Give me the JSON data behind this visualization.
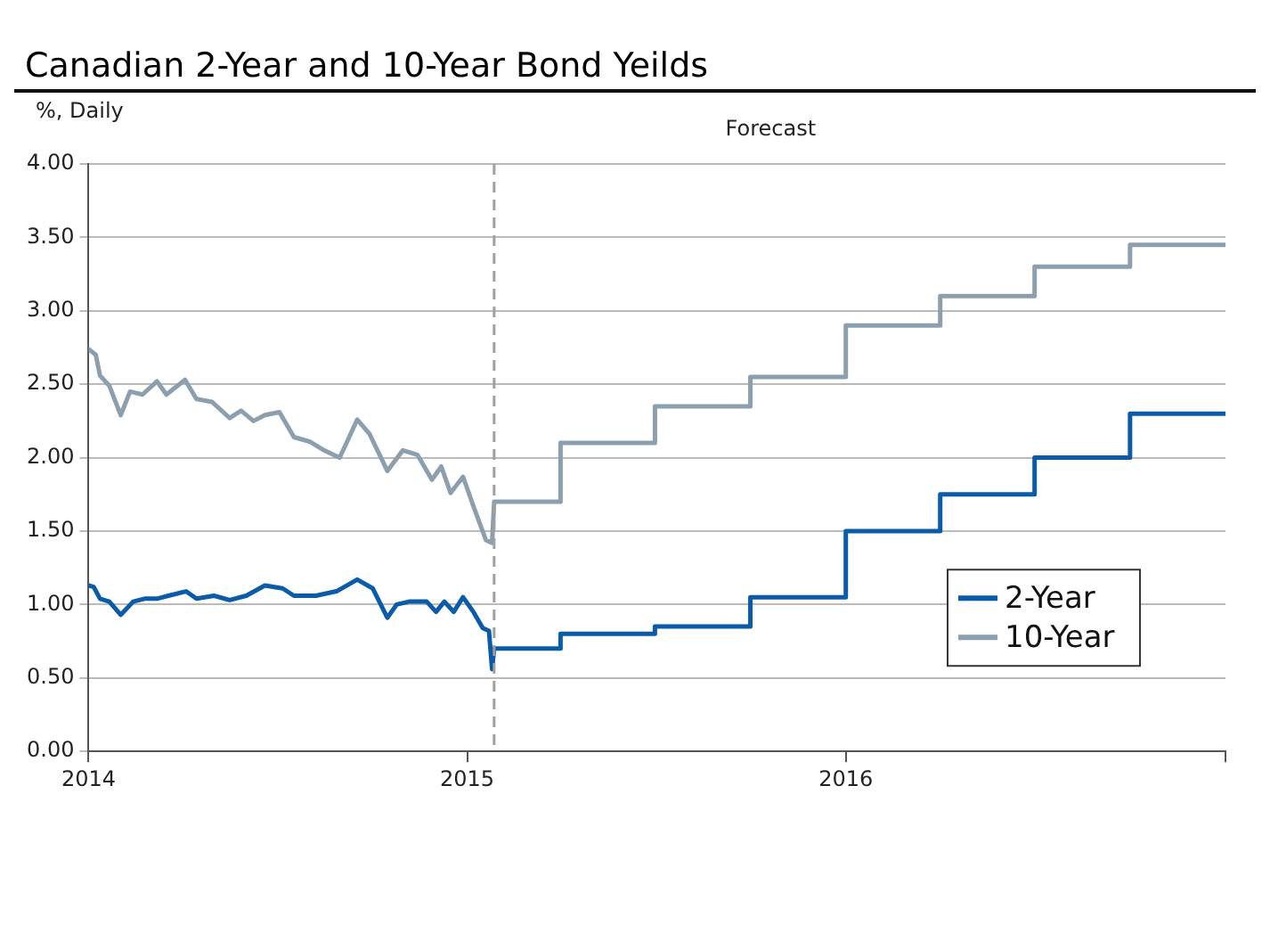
{
  "chart_data": {
    "type": "line",
    "title": "Canadian 2-Year and 10-Year Bond Yeilds",
    "ylabel": "%, Daily",
    "annotations": [
      "Forecast"
    ],
    "xlim": [
      "2014-01-01",
      "2017-01-01"
    ],
    "xticks": [
      "2014",
      "2015",
      "2016",
      {
        "value": "2017",
        "label": null
      }
    ],
    "ylim": [
      0,
      4
    ],
    "yticks": [
      {
        "value": 0,
        "label": "0.00"
      },
      {
        "value": 0.5,
        "label": "0.50"
      },
      {
        "value": 1,
        "label": "1.00"
      },
      {
        "value": 1.5,
        "label": "1.50"
      },
      {
        "value": 2,
        "label": "2.00"
      },
      {
        "value": 2.5,
        "label": "2.50"
      },
      {
        "value": 3,
        "label": "3.00"
      },
      {
        "value": 3.5,
        "label": "3.50"
      },
      {
        "value": 4,
        "label": "4.00"
      }
    ],
    "grid": "y",
    "legend": "bottom right",
    "marker": "none",
    "line_style": "solid",
    "ref_lines": [
      {
        "axis": "x",
        "value": "2015-01-27",
        "line_style": "dashed",
        "color": "#a0a0a0"
      }
    ],
    "series": [
      {
        "name": "2-Year",
        "color": "#0a5ca8",
        "x": [
          "2014-01-01",
          "2014-01-06",
          "2014-01-12",
          "2014-01-21",
          "2014-02-01",
          "2014-02-13",
          "2014-02-24",
          "2014-03-08",
          "2014-03-19",
          "2014-04-05",
          "2014-04-15",
          "2014-05-02",
          "2014-05-17",
          "2014-06-02",
          "2014-06-20",
          "2014-07-07",
          "2014-07-18",
          "2014-08-08",
          "2014-08-28",
          "2014-09-17",
          "2014-10-02",
          "2014-10-16",
          "2014-10-25",
          "2014-11-06",
          "2014-11-23",
          "2014-12-02",
          "2014-12-10",
          "2014-12-19",
          "2014-12-28",
          "2015-01-07",
          "2015-01-16",
          "2015-01-22",
          "2015-01-25",
          "2015-01-27",
          "2015-04-01",
          "2015-04-01",
          "2015-07-01",
          "2015-07-01",
          "2015-10-01",
          "2015-10-01",
          "2016-01-01",
          "2016-01-01",
          "2016-04-01",
          "2016-04-01",
          "2016-07-01",
          "2016-07-01",
          "2016-10-01",
          "2016-10-01",
          "2017-01-01"
        ],
        "values": [
          1.13,
          1.12,
          1.04,
          1.02,
          0.93,
          1.02,
          1.04,
          1.04,
          1.06,
          1.09,
          1.04,
          1.06,
          1.03,
          1.06,
          1.13,
          1.11,
          1.06,
          1.06,
          1.09,
          1.17,
          1.11,
          0.91,
          1.0,
          1.02,
          1.02,
          0.95,
          1.02,
          0.95,
          1.05,
          0.95,
          0.84,
          0.82,
          0.56,
          0.7,
          0.7,
          0.8,
          0.8,
          0.85,
          0.85,
          1.05,
          1.05,
          1.5,
          1.5,
          1.75,
          1.75,
          2.0,
          2.0,
          2.3,
          2.3
        ]
      },
      {
        "name": "10-Year",
        "color": "#8c9fae",
        "x": [
          "2014-01-01",
          "2014-01-08",
          "2014-01-12",
          "2014-01-21",
          "2014-02-01",
          "2014-02-10",
          "2014-02-22",
          "2014-03-08",
          "2014-03-17",
          "2014-04-04",
          "2014-04-15",
          "2014-04-30",
          "2014-05-17",
          "2014-05-28",
          "2014-06-09",
          "2014-06-20",
          "2014-07-04",
          "2014-07-18",
          "2014-08-02",
          "2014-08-16",
          "2014-08-31",
          "2014-09-06",
          "2014-09-17",
          "2014-09-29",
          "2014-10-16",
          "2014-10-31",
          "2014-11-14",
          "2014-11-28",
          "2014-12-07",
          "2014-12-16",
          "2014-12-28",
          "2015-01-07",
          "2015-01-19",
          "2015-01-25",
          "2015-01-27",
          "2015-04-01",
          "2015-04-01",
          "2015-07-01",
          "2015-07-01",
          "2015-10-01",
          "2015-10-01",
          "2016-01-01",
          "2016-01-01",
          "2016-04-01",
          "2016-04-01",
          "2016-07-01",
          "2016-07-01",
          "2016-10-01",
          "2016-10-01",
          "2017-01-01"
        ],
        "values": [
          2.74,
          2.7,
          2.56,
          2.49,
          2.29,
          2.45,
          2.43,
          2.52,
          2.43,
          2.53,
          2.4,
          2.38,
          2.27,
          2.32,
          2.25,
          2.29,
          2.31,
          2.14,
          2.11,
          2.05,
          2.0,
          2.09,
          2.26,
          2.16,
          1.91,
          2.05,
          2.02,
          1.85,
          1.94,
          1.76,
          1.87,
          1.67,
          1.44,
          1.42,
          1.7,
          1.7,
          2.1,
          2.1,
          2.35,
          2.35,
          2.55,
          2.55,
          2.9,
          2.9,
          3.1,
          3.1,
          3.3,
          3.3,
          3.45,
          3.45
        ]
      }
    ]
  }
}
